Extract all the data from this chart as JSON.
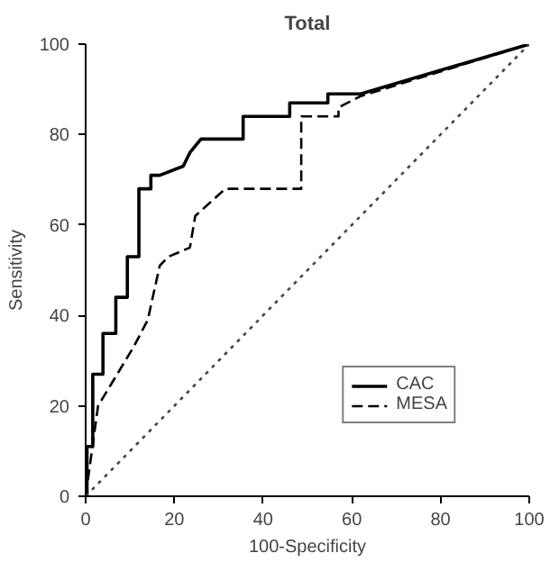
{
  "chart_data": {
    "type": "line",
    "title": "Total",
    "xlabel": "100-Specificity",
    "ylabel": "Sensitivity",
    "xlim": [
      0,
      100
    ],
    "ylim": [
      0,
      100
    ],
    "xticks": [
      0,
      20,
      40,
      60,
      80,
      100
    ],
    "yticks": [
      0,
      20,
      40,
      60,
      80,
      100
    ],
    "grid": false,
    "legend": "bottom right",
    "marker": "none",
    "series": [
      {
        "name": "CAC",
        "color": "#000000",
        "line_style": "solid",
        "x": [
          0,
          0.3,
          0.3,
          1.6,
          1.6,
          3.9,
          3.9,
          6.8,
          6.8,
          9.4,
          9.4,
          12,
          12,
          14.7,
          14.7,
          16.7,
          22,
          22,
          23.5,
          23.5,
          26,
          26,
          35.5,
          35.5,
          46,
          46,
          54.6,
          54.6,
          62,
          100
        ],
        "values": [
          0,
          0,
          11,
          11,
          27,
          27,
          36,
          36,
          44,
          44,
          53,
          53,
          68,
          68,
          71,
          71,
          73,
          73,
          76,
          76,
          79,
          79,
          79,
          84,
          84,
          87,
          87,
          89,
          89,
          100
        ]
      },
      {
        "name": "MESA",
        "color": "#000000",
        "line_style": "dashed",
        "x": [
          0,
          2.8,
          2.8,
          10.8,
          10.8,
          14,
          14,
          16.7,
          16.7,
          18.7,
          18.7,
          23.5,
          24.7,
          31.5,
          44.6,
          48.6,
          48.6,
          57,
          57,
          62,
          100
        ],
        "values": [
          0,
          20,
          20,
          33,
          33,
          39,
          39,
          51,
          51,
          53,
          53,
          55,
          62,
          68,
          68,
          68,
          84,
          84,
          86,
          88.5,
          100
        ]
      },
      {
        "color": "#444444",
        "line_style": "dotted",
        "x": [
          0,
          100
        ],
        "values": [
          0,
          100
        ]
      }
    ]
  }
}
